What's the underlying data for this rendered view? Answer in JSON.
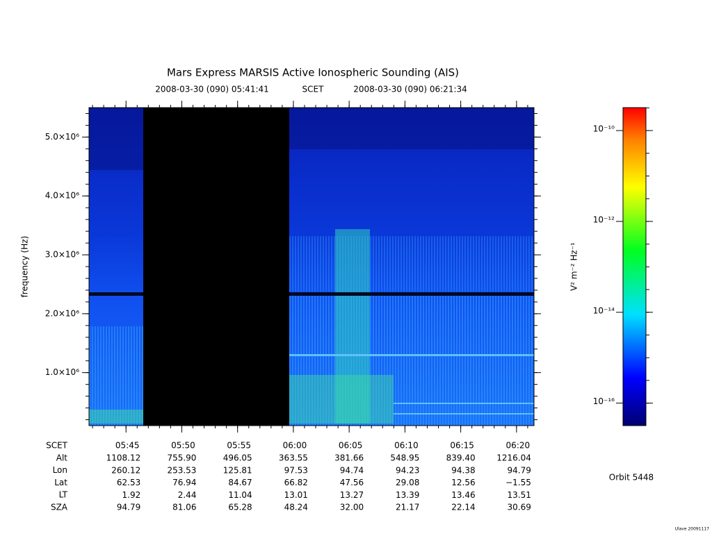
{
  "chart_data": {
    "type": "spectrogram",
    "title": "Mars Express MARSIS Active Ionospheric Sounding (AIS)",
    "start_time": "2008-03-30 (090) 05:41:41",
    "time_label": "SCET",
    "end_time": "2008-03-30 (090) 06:21:34",
    "y_label": "frequency (Hz)",
    "ylim": [
      100000,
      5500000
    ],
    "yticks": [
      {
        "value": 1000000,
        "label": "1.0×10⁶"
      },
      {
        "value": 2000000,
        "label": "2.0×10⁶"
      },
      {
        "value": 3000000,
        "label": "3.0×10⁶"
      },
      {
        "value": 4000000,
        "label": "4.0×10⁶"
      },
      {
        "value": 5000000,
        "label": "5.0×10⁶"
      }
    ],
    "xlim": [
      341.683,
      381.567
    ],
    "xticks": [
      {
        "value": 345,
        "label": "05:45"
      },
      {
        "value": 350,
        "label": "05:50"
      },
      {
        "value": 355,
        "label": "05:55"
      },
      {
        "value": 360,
        "label": "06:00"
      },
      {
        "value": 365,
        "label": "06:05"
      },
      {
        "value": 370,
        "label": "06:10"
      },
      {
        "value": 375,
        "label": "06:15"
      },
      {
        "value": 380,
        "label": "06:20"
      }
    ],
    "colorbar_label": "V² m⁻² Hz⁻¹",
    "clim": [
      3.2e-17,
      3.2e-10
    ],
    "log_color": true,
    "cticks": [
      {
        "value": 1e-10,
        "label": "10⁻¹⁰"
      },
      {
        "value": 1e-12,
        "label": "10⁻¹²"
      },
      {
        "value": 1e-14,
        "label": "10⁻¹⁴"
      },
      {
        "value": 1e-16,
        "label": "10⁻¹⁶"
      }
    ],
    "ephemeris": {
      "row_labels": [
        "SCET",
        "Alt",
        "Lon",
        "Lat",
        "LT",
        "SZA"
      ],
      "rows": [
        [
          "1108.12",
          "755.90",
          "496.05",
          "363.55",
          "381.66",
          "548.95",
          "839.40",
          "1216.04"
        ],
        [
          "260.12",
          "253.53",
          "125.81",
          "97.53",
          "94.74",
          "94.23",
          "94.38",
          "94.79"
        ],
        [
          "62.53",
          "76.94",
          "84.67",
          "66.82",
          "47.56",
          "29.08",
          "12.56",
          "−1.55"
        ],
        [
          "1.92",
          "2.44",
          "11.04",
          "13.01",
          "13.27",
          "13.39",
          "13.46",
          "13.51"
        ],
        [
          "94.79",
          "81.06",
          "65.28",
          "48.24",
          "32.00",
          "21.17",
          "22.14",
          "30.69"
        ]
      ]
    },
    "orbit": "Orbit 5448",
    "footer": "Ulave 20091117"
  }
}
